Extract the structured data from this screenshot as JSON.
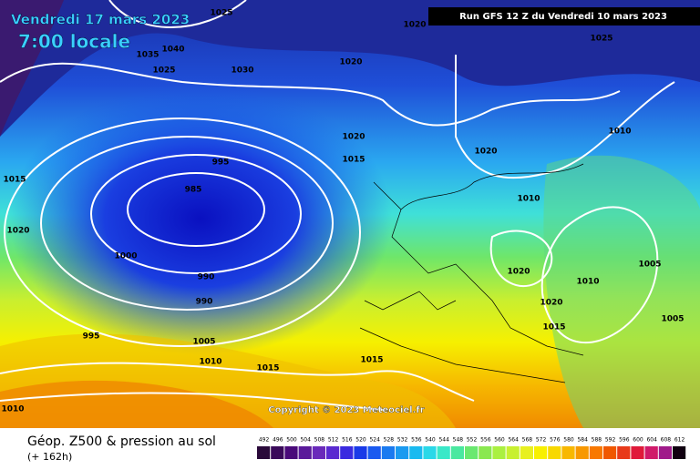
{
  "header": {
    "date": "Vendredi 17 mars 2023",
    "time": "7:00 locale",
    "run": "Run GFS 12 Z du Vendredi 10 mars 2023"
  },
  "copyright": "Copyright © 2023 Meteociel.fr",
  "footer": {
    "title": "Géop. Z500 & pression au sol",
    "lead": "(+ 162h)"
  },
  "legend": {
    "values": [
      492,
      496,
      500,
      504,
      508,
      512,
      516,
      520,
      524,
      528,
      532,
      536,
      540,
      544,
      548,
      552,
      556,
      560,
      564,
      568,
      572,
      576,
      580,
      584,
      588,
      592,
      596,
      600,
      604,
      608,
      612
    ]
  },
  "isobars": [
    "1025",
    "1020",
    "1025",
    "1035",
    "1040",
    "1025",
    "1030",
    "1020",
    "1020",
    "1015",
    "995",
    "985",
    "1015",
    "1020",
    "1000",
    "990",
    "990",
    "995",
    "1005",
    "1010",
    "1015",
    "1015",
    "1010",
    "1020",
    "1010",
    "1010",
    "1005",
    "1010",
    "1020",
    "1020",
    "1015",
    "1005"
  ]
}
